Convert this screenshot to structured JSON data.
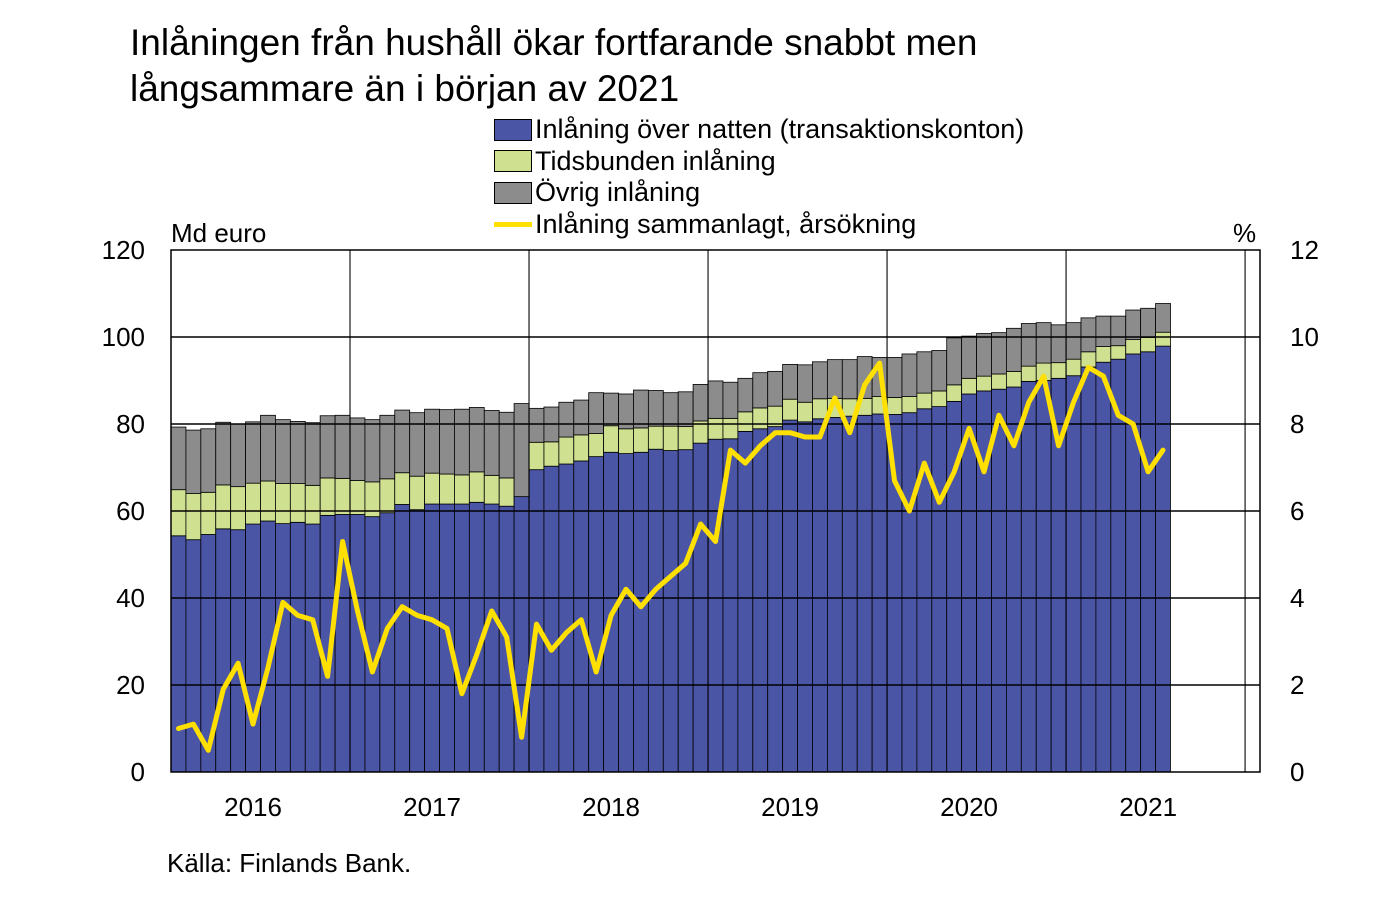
{
  "title_line1": "Inlåningen från hushåll ökar fortfarande snabbt men",
  "title_line2": "långsammare än i början av 2021",
  "legend": [
    {
      "label": "Inlåning över natten (transaktionskonton)",
      "color": "#4b55a5",
      "kind": "box"
    },
    {
      "label": "Tidsbunden inlåning",
      "color": "#cfe090",
      "kind": "box"
    },
    {
      "label": "Övrig inlåning",
      "color": "#8c8c8c",
      "kind": "box"
    },
    {
      "label": "Inlåning sammanlagt, årsökning",
      "color": "#ffe000",
      "kind": "line"
    }
  ],
  "left_unit": "Md euro",
  "right_unit": "%",
  "source": "Källa: Finlands Bank.",
  "chart_data": {
    "type": "bar",
    "stacked": true,
    "x_axis": {
      "tick_labels": [
        "2016",
        "2017",
        "2018",
        "2019",
        "2020",
        "2021"
      ],
      "start": "2015-11",
      "end_exclusive": "2021-12",
      "grid": true
    },
    "y_left": {
      "label": "Md euro",
      "min": 0,
      "max": 120,
      "ticks": [
        0,
        20,
        40,
        60,
        80,
        100,
        120
      ]
    },
    "y_right": {
      "label": "%",
      "min": 0,
      "max": 12,
      "ticks": [
        0,
        2,
        4,
        6,
        8,
        10,
        12
      ]
    },
    "months": [
      "2015-11",
      "2015-12",
      "2016-01",
      "2016-02",
      "2016-03",
      "2016-04",
      "2016-05",
      "2016-06",
      "2016-07",
      "2016-08",
      "2016-09",
      "2016-10",
      "2016-11",
      "2016-12",
      "2017-01",
      "2017-02",
      "2017-03",
      "2017-04",
      "2017-05",
      "2017-06",
      "2017-07",
      "2017-08",
      "2017-09",
      "2017-10",
      "2017-11",
      "2017-12",
      "2018-01",
      "2018-02",
      "2018-03",
      "2018-04",
      "2018-05",
      "2018-06",
      "2018-07",
      "2018-08",
      "2018-09",
      "2018-10",
      "2018-11",
      "2018-12",
      "2019-01",
      "2019-02",
      "2019-03",
      "2019-04",
      "2019-05",
      "2019-06",
      "2019-07",
      "2019-08",
      "2019-09",
      "2019-10",
      "2019-11",
      "2019-12",
      "2020-01",
      "2020-02",
      "2020-03",
      "2020-04",
      "2020-05",
      "2020-06",
      "2020-07",
      "2020-08",
      "2020-09",
      "2020-10",
      "2020-11",
      "2020-12",
      "2021-01",
      "2021-02",
      "2021-03",
      "2021-04",
      "2021-05"
    ],
    "series": [
      {
        "name": "Inlåning över natten (transaktionskonton)",
        "axis": "left",
        "color": "#4b55a5",
        "values": [
          54.3,
          53.4,
          54.6,
          55.9,
          55.7,
          57.0,
          57.7,
          57.1,
          57.4,
          57.0,
          59.0,
          59.2,
          59.2,
          58.7,
          59.6,
          61.5,
          60.3,
          61.6,
          61.6,
          61.6,
          62.0,
          61.6,
          61.1,
          63.3,
          69.5,
          70.3,
          70.8,
          71.5,
          72.5,
          73.5,
          73.2,
          73.5,
          74.2,
          73.9,
          74.1,
          75.6,
          76.5,
          76.6,
          78.3,
          78.9,
          79.4,
          80.9,
          80.5,
          81.2,
          81.5,
          81.8,
          82.0,
          82.3,
          82.2,
          82.6,
          83.5,
          84.0,
          85.2,
          86.9,
          87.6,
          88.0,
          88.5,
          89.8,
          90.0,
          90.5,
          91.1,
          93.1,
          94.2,
          94.9,
          96.1,
          96.6,
          97.9
        ]
      },
      {
        "name": "Tidsbunden inlåning",
        "axis": "left",
        "color": "#cfe090",
        "values": [
          10.6,
          10.6,
          9.7,
          10.1,
          9.9,
          9.4,
          9.2,
          9.2,
          8.9,
          8.9,
          8.6,
          8.3,
          7.8,
          8.0,
          7.8,
          7.3,
          7.7,
          7.1,
          6.9,
          6.7,
          7.0,
          6.6,
          6.5,
          0.0,
          6.3,
          5.6,
          6.2,
          6.0,
          5.3,
          6.1,
          5.7,
          5.6,
          5.3,
          5.6,
          5.3,
          5.1,
          4.8,
          4.7,
          4.5,
          4.8,
          4.7,
          4.8,
          4.5,
          4.6,
          4.4,
          4.0,
          3.9,
          4.0,
          3.9,
          3.7,
          3.6,
          3.6,
          3.8,
          3.6,
          3.4,
          3.5,
          3.6,
          3.5,
          4.0,
          3.6,
          3.8,
          3.5,
          3.6,
          3.1,
          3.3,
          3.3,
          3.2
        ]
      },
      {
        "name": "Övrig inlåning",
        "axis": "left",
        "color": "#8c8c8c",
        "values": [
          14.4,
          14.6,
          14.6,
          14.4,
          14.4,
          14.1,
          15.1,
          14.7,
          14.3,
          14.4,
          14.3,
          14.5,
          14.4,
          14.3,
          14.6,
          14.4,
          14.6,
          14.7,
          14.8,
          15.1,
          14.8,
          14.9,
          15.1,
          21.4,
          7.8,
          8.0,
          8.0,
          8.0,
          9.4,
          7.5,
          8.0,
          8.7,
          8.2,
          7.7,
          8.0,
          8.4,
          8.6,
          8.3,
          7.7,
          8.1,
          8.0,
          8.0,
          8.6,
          8.5,
          8.9,
          9.0,
          9.6,
          9.0,
          9.2,
          9.8,
          9.5,
          9.3,
          10.8,
          9.7,
          9.8,
          9.5,
          9.9,
          9.8,
          9.3,
          8.7,
          8.4,
          7.8,
          7.0,
          6.8,
          6.8,
          6.7,
          6.6
        ]
      },
      {
        "name": "Inlåning sammanlagt, årsökning",
        "axis": "right",
        "color": "#ffe000",
        "type": "line",
        "values": [
          1.0,
          1.1,
          0.5,
          1.9,
          2.5,
          1.1,
          2.4,
          3.9,
          3.6,
          3.5,
          2.2,
          5.3,
          3.7,
          2.3,
          3.3,
          3.8,
          3.6,
          3.5,
          3.3,
          1.8,
          2.7,
          3.7,
          3.1,
          0.8,
          3.4,
          2.8,
          3.2,
          3.5,
          2.3,
          3.6,
          4.2,
          3.8,
          4.2,
          4.5,
          4.8,
          5.7,
          5.3,
          7.4,
          7.1,
          7.5,
          7.8,
          7.8,
          7.7,
          7.7,
          8.6,
          7.8,
          8.9,
          9.4,
          6.7,
          6.0,
          7.1,
          6.2,
          6.9,
          7.9,
          6.9,
          8.2,
          7.5,
          8.5,
          9.1,
          7.5,
          8.5,
          9.3,
          9.1,
          8.2,
          8.0,
          6.9,
          7.4
        ]
      }
    ]
  }
}
